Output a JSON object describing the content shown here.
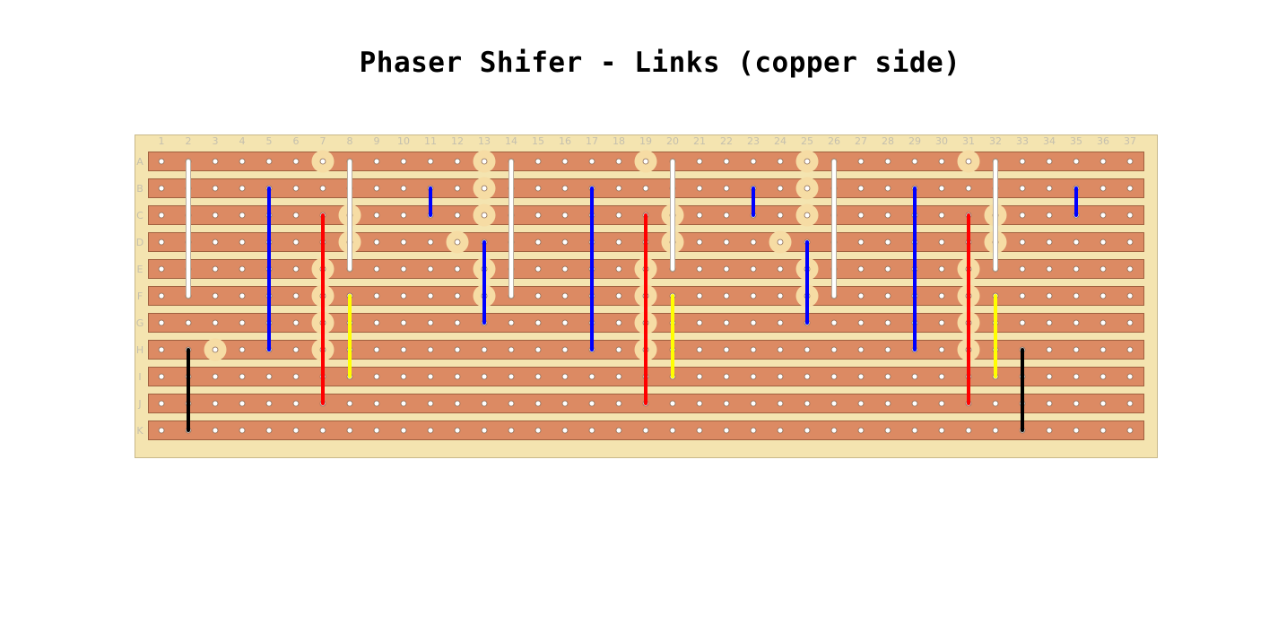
{
  "title": "Phaser Shifer - Links (copper side)",
  "board": {
    "columns": [
      "1",
      "2",
      "3",
      "4",
      "5",
      "6",
      "7",
      "8",
      "9",
      "10",
      "11",
      "12",
      "13",
      "14",
      "15",
      "16",
      "17",
      "18",
      "19",
      "20",
      "21",
      "22",
      "23",
      "24",
      "25",
      "26",
      "27",
      "28",
      "29",
      "30",
      "31",
      "32",
      "33",
      "34",
      "35",
      "36",
      "37"
    ],
    "rows": [
      "A",
      "B",
      "C",
      "D",
      "E",
      "F",
      "G",
      "H",
      "I",
      "J",
      "K"
    ],
    "colors": {
      "board": "#f4e4b0",
      "strip": "#dc8a63",
      "strip_border": "#a0603f",
      "hole": "#ffffff",
      "pad": "#f6dca4",
      "labels": "#c4bfae"
    }
  },
  "pads": [
    {
      "row": "A",
      "col": 7
    },
    {
      "row": "A",
      "col": 13
    },
    {
      "row": "A",
      "col": 19
    },
    {
      "row": "A",
      "col": 25
    },
    {
      "row": "A",
      "col": 31
    },
    {
      "row": "B",
      "col": 13
    },
    {
      "row": "B",
      "col": 25
    },
    {
      "row": "C",
      "col": 8
    },
    {
      "row": "C",
      "col": 13
    },
    {
      "row": "C",
      "col": 20
    },
    {
      "row": "C",
      "col": 25
    },
    {
      "row": "C",
      "col": 32
    },
    {
      "row": "D",
      "col": 8
    },
    {
      "row": "D",
      "col": 12
    },
    {
      "row": "D",
      "col": 20
    },
    {
      "row": "D",
      "col": 24
    },
    {
      "row": "D",
      "col": 32
    },
    {
      "row": "E",
      "col": 7
    },
    {
      "row": "E",
      "col": 13
    },
    {
      "row": "E",
      "col": 19
    },
    {
      "row": "E",
      "col": 25
    },
    {
      "row": "E",
      "col": 31
    },
    {
      "row": "F",
      "col": 7
    },
    {
      "row": "F",
      "col": 13
    },
    {
      "row": "F",
      "col": 19
    },
    {
      "row": "F",
      "col": 25
    },
    {
      "row": "F",
      "col": 31
    },
    {
      "row": "G",
      "col": 7
    },
    {
      "row": "G",
      "col": 19
    },
    {
      "row": "G",
      "col": 31
    },
    {
      "row": "H",
      "col": 3
    },
    {
      "row": "H",
      "col": 7
    },
    {
      "row": "H",
      "col": 19
    },
    {
      "row": "H",
      "col": 31
    }
  ],
  "links": [
    {
      "col": 2,
      "from": "A",
      "to": "F",
      "color": "white"
    },
    {
      "col": 2,
      "from": "H",
      "to": "K",
      "color": "black"
    },
    {
      "col": 5,
      "from": "B",
      "to": "H",
      "color": "blue"
    },
    {
      "col": 7,
      "from": "C",
      "to": "J",
      "color": "red"
    },
    {
      "col": 8,
      "from": "A",
      "to": "E",
      "color": "white"
    },
    {
      "col": 8,
      "from": "F",
      "to": "I",
      "color": "yellow"
    },
    {
      "col": 11,
      "from": "B",
      "to": "C",
      "color": "blue"
    },
    {
      "col": 13,
      "from": "D",
      "to": "G",
      "color": "blue"
    },
    {
      "col": 14,
      "from": "A",
      "to": "F",
      "color": "white"
    },
    {
      "col": 17,
      "from": "B",
      "to": "H",
      "color": "blue"
    },
    {
      "col": 19,
      "from": "C",
      "to": "J",
      "color": "red"
    },
    {
      "col": 20,
      "from": "A",
      "to": "E",
      "color": "white"
    },
    {
      "col": 20,
      "from": "F",
      "to": "I",
      "color": "yellow"
    },
    {
      "col": 23,
      "from": "B",
      "to": "C",
      "color": "blue"
    },
    {
      "col": 25,
      "from": "D",
      "to": "G",
      "color": "blue"
    },
    {
      "col": 26,
      "from": "A",
      "to": "F",
      "color": "white"
    },
    {
      "col": 29,
      "from": "B",
      "to": "H",
      "color": "blue"
    },
    {
      "col": 31,
      "from": "C",
      "to": "J",
      "color": "red"
    },
    {
      "col": 32,
      "from": "A",
      "to": "E",
      "color": "white"
    },
    {
      "col": 32,
      "from": "F",
      "to": "I",
      "color": "yellow"
    },
    {
      "col": 33,
      "from": "H",
      "to": "K",
      "color": "black"
    },
    {
      "col": 35,
      "from": "B",
      "to": "C",
      "color": "blue"
    }
  ],
  "link_colors": {
    "white": "#ffffff",
    "black": "#000000",
    "blue": "#0000ff",
    "red": "#ff0000",
    "yellow": "#ffff00"
  }
}
